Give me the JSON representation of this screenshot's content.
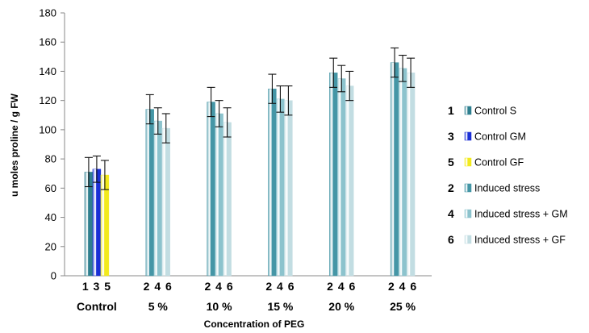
{
  "chart_data": {
    "type": "bar",
    "xlabel": "Concentration of PEG",
    "ylabel": "u moles proline / g FW",
    "ylim": [
      0,
      180
    ],
    "y_ticks": [
      "0",
      "20",
      "40",
      "60",
      "80",
      "100",
      "120",
      "140",
      "160",
      "180"
    ],
    "grid": false,
    "legend_position": "right",
    "groups": [
      {
        "label": "Control",
        "bar_numbers": "1 3 5",
        "bars": [
          {
            "series": "1",
            "value": 71,
            "error": 10
          },
          {
            "series": "3",
            "value": 73,
            "error": 9
          },
          {
            "series": "5",
            "value": 69,
            "error": 10
          }
        ]
      },
      {
        "label": "5 %",
        "bar_numbers": "2 4 6",
        "bars": [
          {
            "series": "2",
            "value": 114,
            "error": 10
          },
          {
            "series": "4",
            "value": 106,
            "error": 9
          },
          {
            "series": "6",
            "value": 101,
            "error": 10
          }
        ]
      },
      {
        "label": "10 %",
        "bar_numbers": "2 4 6",
        "bars": [
          {
            "series": "2",
            "value": 119,
            "error": 10
          },
          {
            "series": "4",
            "value": 111,
            "error": 9
          },
          {
            "series": "6",
            "value": 105,
            "error": 10
          }
        ]
      },
      {
        "label": "15 %",
        "bar_numbers": "2 4 6",
        "bars": [
          {
            "series": "2",
            "value": 128,
            "error": 10
          },
          {
            "series": "4",
            "value": 121,
            "error": 9
          },
          {
            "series": "6",
            "value": 120,
            "error": 10
          }
        ]
      },
      {
        "label": "20 %",
        "bar_numbers": "2 4 6",
        "bars": [
          {
            "series": "2",
            "value": 139,
            "error": 10
          },
          {
            "series": "4",
            "value": 135,
            "error": 9
          },
          {
            "series": "6",
            "value": 130,
            "error": 10
          }
        ]
      },
      {
        "label": "25 %",
        "bar_numbers": "2 4 6",
        "bars": [
          {
            "series": "2",
            "value": 146,
            "error": 10
          },
          {
            "series": "4",
            "value": 142,
            "error": 9
          },
          {
            "series": "6",
            "value": 139,
            "error": 10
          }
        ]
      }
    ],
    "legend": [
      {
        "num": "1",
        "name": "Control S",
        "color": "#2e7f8f"
      },
      {
        "num": "3",
        "name": "Control GM",
        "color": "#1a2fd6"
      },
      {
        "num": "5",
        "name": "Control GF",
        "color": "#f2ea1c"
      },
      {
        "num": "2",
        "name": "Induced stress",
        "color": "#4596a6"
      },
      {
        "num": "4",
        "name": "Induced stress + GM",
        "color": "#8cc3cd"
      },
      {
        "num": "6",
        "name": "Induced stress + GF",
        "color": "#c2dde2"
      }
    ]
  }
}
